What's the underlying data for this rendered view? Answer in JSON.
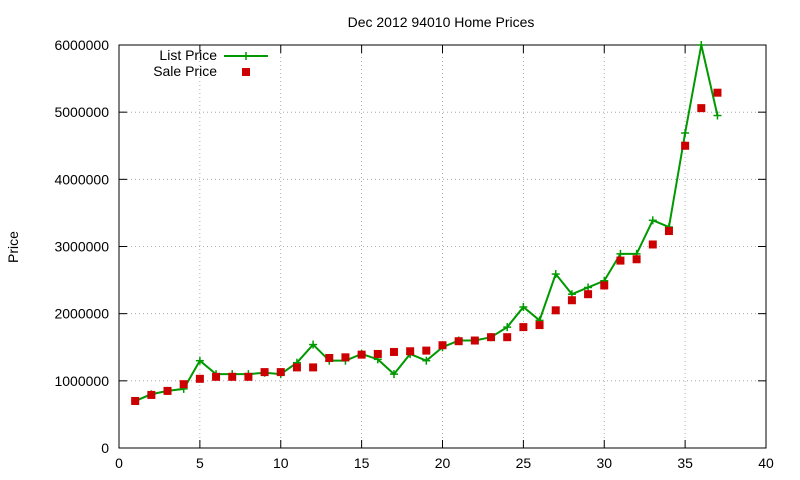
{
  "chart_data": {
    "type": "line",
    "title": "Dec 2012 94010 Home Prices",
    "xlabel": "",
    "ylabel": "Price",
    "xlim": [
      0,
      40
    ],
    "ylim": [
      0,
      6000000
    ],
    "xticks": [
      0,
      5,
      10,
      15,
      20,
      25,
      30,
      35,
      40
    ],
    "yticks": [
      0,
      1000000,
      2000000,
      3000000,
      4000000,
      5000000,
      6000000
    ],
    "grid": true,
    "legend_position": "top-left",
    "x": [
      1,
      2,
      3,
      4,
      5,
      6,
      7,
      8,
      9,
      10,
      11,
      12,
      13,
      14,
      15,
      16,
      17,
      18,
      19,
      20,
      21,
      22,
      23,
      24,
      25,
      26,
      27,
      28,
      29,
      30,
      31,
      32,
      33,
      34,
      35,
      36,
      37
    ],
    "series": [
      {
        "name": "List Price",
        "style": "line-plus",
        "color": "#009900",
        "values": [
          700000,
          800000,
          850000,
          880000,
          1300000,
          1100000,
          1100000,
          1100000,
          1120000,
          1100000,
          1270000,
          1540000,
          1300000,
          1300000,
          1400000,
          1320000,
          1100000,
          1400000,
          1300000,
          1500000,
          1600000,
          1600000,
          1650000,
          1800000,
          2100000,
          1900000,
          2590000,
          2290000,
          2390000,
          2490000,
          2890000,
          2890000,
          3390000,
          3290000,
          4690000,
          6000000,
          4950000
        ]
      },
      {
        "name": "Sale Price",
        "style": "square",
        "color": "#cc0000",
        "values": [
          700000,
          790000,
          850000,
          950000,
          1030000,
          1060000,
          1060000,
          1060000,
          1130000,
          1130000,
          1200000,
          1200000,
          1340000,
          1350000,
          1390000,
          1400000,
          1430000,
          1440000,
          1450000,
          1530000,
          1590000,
          1600000,
          1650000,
          1650000,
          1800000,
          1830000,
          2050000,
          2200000,
          2290000,
          2420000,
          2790000,
          2810000,
          3030000,
          3230000,
          4500000,
          5060000,
          5290000
        ]
      }
    ]
  }
}
